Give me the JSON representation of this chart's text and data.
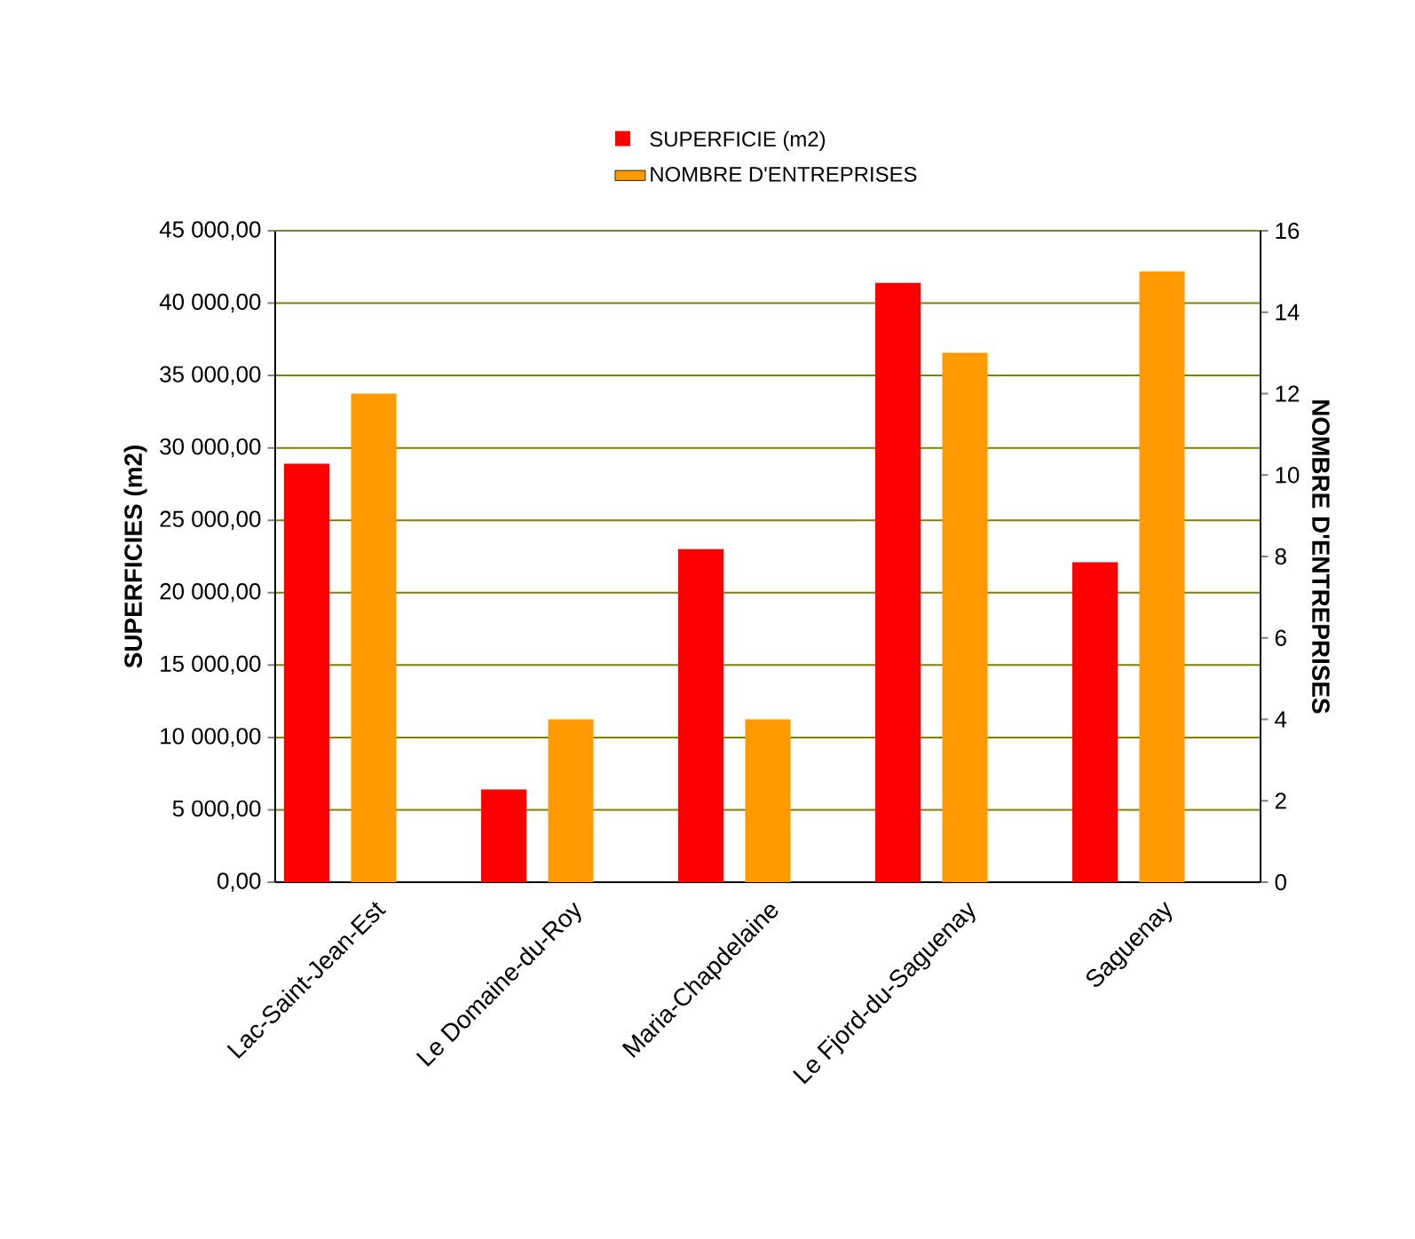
{
  "chart_data": {
    "type": "bar",
    "categories": [
      "Lac-Saint-Jean-Est",
      "Le Domaine-du-Roy",
      "Maria-Chapdelaine",
      "Le Fjord-du-Saguenay",
      "Saguenay"
    ],
    "series": [
      {
        "name": "SUPERFICIE (m2)",
        "color": "#ff0000",
        "values": [
          28900,
          6400,
          23000,
          41400,
          22100
        ]
      },
      {
        "name": "NOMBRE D'ENTREPRISES",
        "color": "#ff9900",
        "axis": "y2",
        "values": [
          12,
          4,
          4,
          13,
          15
        ]
      }
    ],
    "ylabel": "SUPERFICIES (m2)",
    "y2label": "NOMBRE D'ENTREPRISES",
    "ylim": [
      0,
      45000
    ],
    "yticks": [
      {
        "value": 0,
        "label": "0,00"
      },
      {
        "value": 5000,
        "label": "5 000,00"
      },
      {
        "value": 10000,
        "label": "10 000,00"
      },
      {
        "value": 15000,
        "label": "15 000,00"
      },
      {
        "value": 20000,
        "label": "20 000,00"
      },
      {
        "value": 25000,
        "label": "25 000,00"
      },
      {
        "value": 30000,
        "label": "30 000,00"
      },
      {
        "value": 35000,
        "label": "35 000,00"
      },
      {
        "value": 40000,
        "label": "40 000,00"
      },
      {
        "value": 45000,
        "label": "45 000,00"
      }
    ],
    "y2lim": [
      0,
      16
    ],
    "y2ticks": [
      0,
      2,
      4,
      6,
      8,
      10,
      12,
      14,
      16
    ],
    "grid": "y",
    "legend": "top"
  }
}
